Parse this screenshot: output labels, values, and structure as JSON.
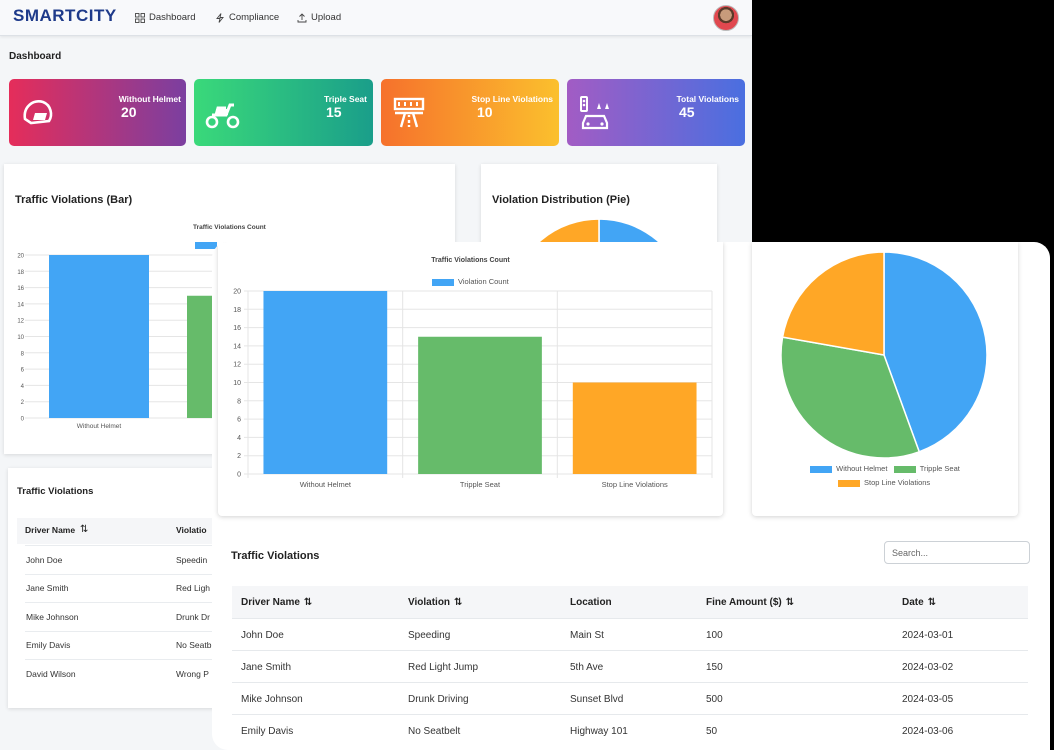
{
  "nav": {
    "brand": "SMARTCITY",
    "items": [
      {
        "label": "Dashboard",
        "icon": "grid-icon"
      },
      {
        "label": "Compliance",
        "icon": "bolt-icon"
      },
      {
        "label": "Upload",
        "icon": "upload-icon"
      }
    ]
  },
  "dashboard_title": "Dashboard",
  "cards": [
    {
      "label": "Without Helmet",
      "value": "20",
      "icon": "helmet-icon"
    },
    {
      "label": "Triple Seat",
      "value": "15",
      "icon": "scooter-icon"
    },
    {
      "label": "Stop Line Violations",
      "value": "10",
      "icon": "road-icon"
    },
    {
      "label": "Total Violations",
      "value": "45",
      "icon": "traffic-car-icon"
    }
  ],
  "bar_panel_title": "Traffic Violations (Bar)",
  "pie_panel_title": "Violation Distribution (Pie)",
  "chart_data": [
    {
      "type": "bar",
      "title": "Traffic Violations Count",
      "categories": [
        "Without Helmet",
        "Tripple Seat",
        "Stop Line Violations"
      ],
      "series": [
        {
          "name": "Violation Count",
          "values": [
            20,
            15,
            10
          ]
        }
      ],
      "ylim": [
        0,
        20
      ],
      "yticks": [
        0,
        2,
        4,
        6,
        8,
        10,
        12,
        14,
        16,
        18,
        20
      ],
      "colors": [
        "#42a5f5",
        "#66bb6a",
        "#ffa726"
      ],
      "grid": true,
      "legend": "top"
    },
    {
      "type": "pie",
      "labels": [
        "Without Helmet",
        "Tripple Seat",
        "Stop Line Violations"
      ],
      "values": [
        20,
        15,
        10
      ],
      "colors": [
        "#42a5f5",
        "#66bb6a",
        "#ffa726"
      ],
      "legend": "bottom"
    }
  ],
  "table": {
    "title": "Traffic Violations",
    "search_placeholder": "Search...",
    "columns": [
      "Driver Name",
      "Violation",
      "Location",
      "Fine Amount ($)",
      "Date"
    ],
    "rows": [
      [
        "John Doe",
        "Speeding",
        "Main St",
        "100",
        "2024-03-01"
      ],
      [
        "Jane Smith",
        "Red Light Jump",
        "5th Ave",
        "150",
        "2024-03-02"
      ],
      [
        "Mike Johnson",
        "Drunk Driving",
        "Sunset Blvd",
        "500",
        "2024-03-05"
      ],
      [
        "Emily Davis",
        "No Seatbelt",
        "Highway 101",
        "50",
        "2024-03-06"
      ],
      [
        "David Wilson",
        "Wrong Parking",
        "",
        "",
        ""
      ]
    ],
    "back_violation_clipped": [
      "Speedin",
      "Red Ligh",
      "Drunk Dr",
      "No Seatb",
      "Wrong P"
    ],
    "back_violation_header_clipped": "Violatio"
  },
  "colors": {
    "brand": "#1e3a8a",
    "helmet_card": [
      "#e52d5a",
      "#7b3fa0"
    ],
    "seat_card": [
      "#3ad97a",
      "#1a9e8a"
    ],
    "stop_card": [
      "#f6712c",
      "#fbc02d"
    ],
    "total_card": [
      "#a25cc4",
      "#4a6fe0"
    ]
  }
}
